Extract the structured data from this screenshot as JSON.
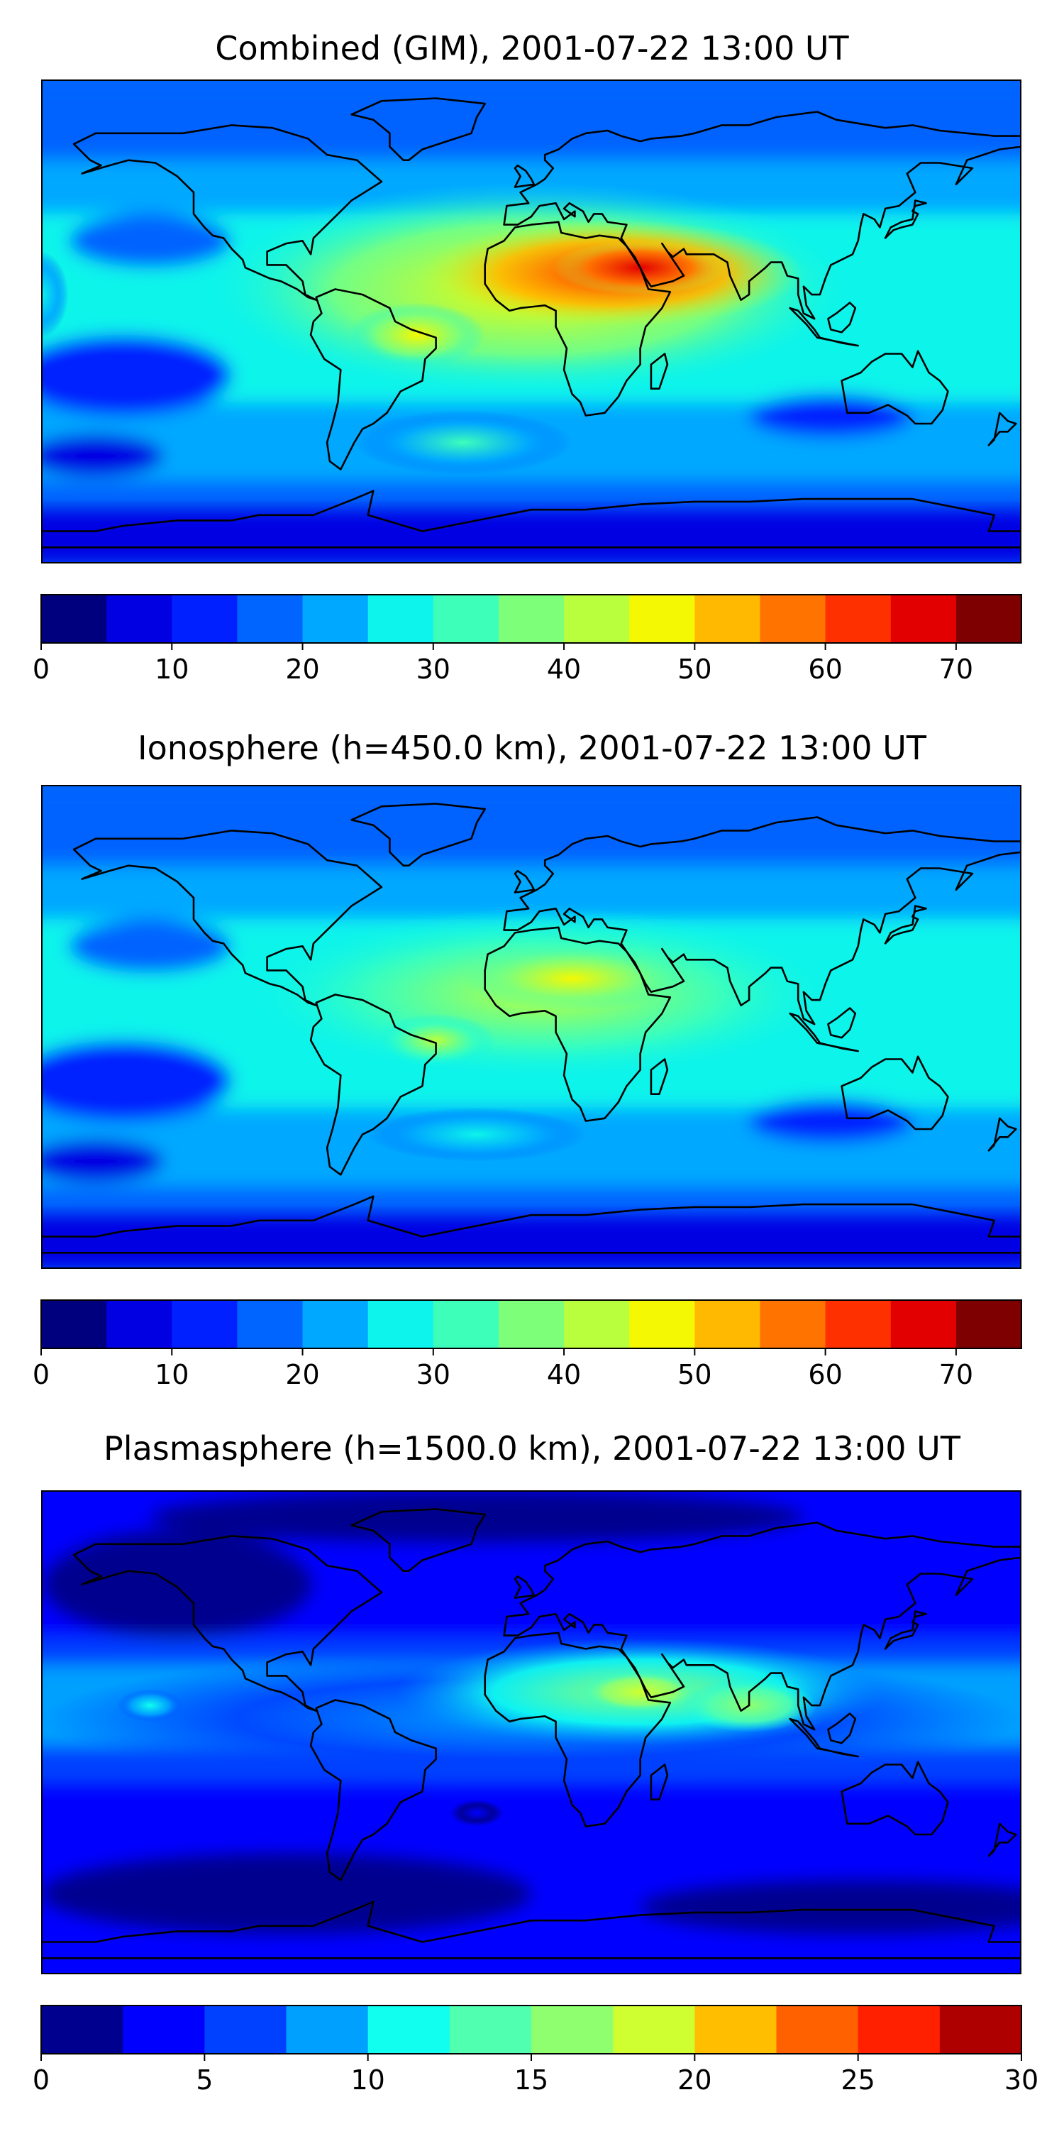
{
  "chart_data": [
    {
      "type": "heatmap",
      "title": "Combined (GIM), 2001-07-22 13:00 UT",
      "xlabel": "",
      "ylabel": "",
      "colorbar": {
        "levels": [
          0,
          5,
          10,
          15,
          20,
          25,
          30,
          35,
          40,
          45,
          50,
          55,
          60,
          65,
          70,
          75
        ],
        "ticks": [
          0,
          10,
          20,
          30,
          40,
          50,
          60,
          70
        ],
        "ylim": [
          0,
          75
        ]
      },
      "blobs": [
        {
          "lon": 0,
          "lat": 12,
          "value": 46,
          "rx": 120,
          "ry": 40
        },
        {
          "lon": 30,
          "lat": 18,
          "value": 62,
          "rx": 70,
          "ry": 20
        },
        {
          "lon": 40,
          "lat": 20,
          "value": 68,
          "rx": 32,
          "ry": 10
        },
        {
          "lon": -42,
          "lat": -5,
          "value": 46,
          "rx": 25,
          "ry": 12
        },
        {
          "lon": -180,
          "lat": 10,
          "value": 28,
          "rx": 10,
          "ry": 16
        },
        {
          "lon": -25,
          "lat": -45,
          "value": 30,
          "rx": 40,
          "ry": 12
        }
      ]
    },
    {
      "type": "heatmap",
      "title": "Ionosphere  (h=450.0 km), 2001-07-22 13:00 UT",
      "xlabel": "",
      "ylabel": "",
      "colorbar": {
        "levels": [
          0,
          5,
          10,
          15,
          20,
          25,
          30,
          35,
          40,
          45,
          50,
          55,
          60,
          65,
          70,
          75
        ],
        "ticks": [
          0,
          10,
          20,
          30,
          40,
          50,
          60,
          70
        ],
        "ylim": [
          0,
          75
        ]
      },
      "blobs": [
        {
          "lon": 5,
          "lat": 12,
          "value": 40,
          "rx": 110,
          "ry": 32
        },
        {
          "lon": 15,
          "lat": 18,
          "value": 47,
          "rx": 40,
          "ry": 12
        },
        {
          "lon": -35,
          "lat": -5,
          "value": 40,
          "rx": 22,
          "ry": 10
        },
        {
          "lon": -20,
          "lat": -40,
          "value": 28,
          "rx": 40,
          "ry": 10
        }
      ]
    },
    {
      "type": "heatmap",
      "title": "Plasmasphere (h=1500.0 km), 2001-07-22 13:00 UT",
      "xlabel": "",
      "ylabel": "",
      "colorbar": {
        "levels": [
          0,
          2.5,
          5,
          7.5,
          10,
          12.5,
          15,
          17.5,
          20,
          22.5,
          25,
          27.5,
          30
        ],
        "ticks": [
          0,
          5,
          10,
          15,
          20,
          25,
          30
        ],
        "ylim": [
          0,
          30
        ]
      },
      "blobs": [
        {
          "lon": 40,
          "lat": 15,
          "value": 15,
          "rx": 90,
          "ry": 20
        },
        {
          "lon": 40,
          "lat": 15,
          "value": 19,
          "rx": 22,
          "ry": 8
        },
        {
          "lon": 80,
          "lat": 10,
          "value": 16,
          "rx": 25,
          "ry": 10
        },
        {
          "lon": -140,
          "lat": 10,
          "value": 11,
          "rx": 12,
          "ry": 6
        },
        {
          "lon": 0,
          "lat": 5,
          "value": 8,
          "rx": 180,
          "ry": 25
        },
        {
          "lon": -20,
          "lat": -30,
          "value": 3,
          "rx": 10,
          "ry": 5
        }
      ]
    }
  ],
  "colors": {
    "jet15": [
      "#00007f",
      "#0000e3",
      "#0020ff",
      "#0064ff",
      "#00a8ff",
      "#0cf4eb",
      "#3dffba",
      "#7dff7a",
      "#baff3d",
      "#f4f802",
      "#ffb900",
      "#ff7400",
      "#ff3000",
      "#e30000",
      "#7f0000"
    ],
    "jet12": [
      "#00008f",
      "#0000ff",
      "#0040ff",
      "#00a0ff",
      "#10ffef",
      "#50ffaf",
      "#8fff70",
      "#cfff30",
      "#ffbf00",
      "#ff6000",
      "#ff2000",
      "#af0000"
    ]
  }
}
